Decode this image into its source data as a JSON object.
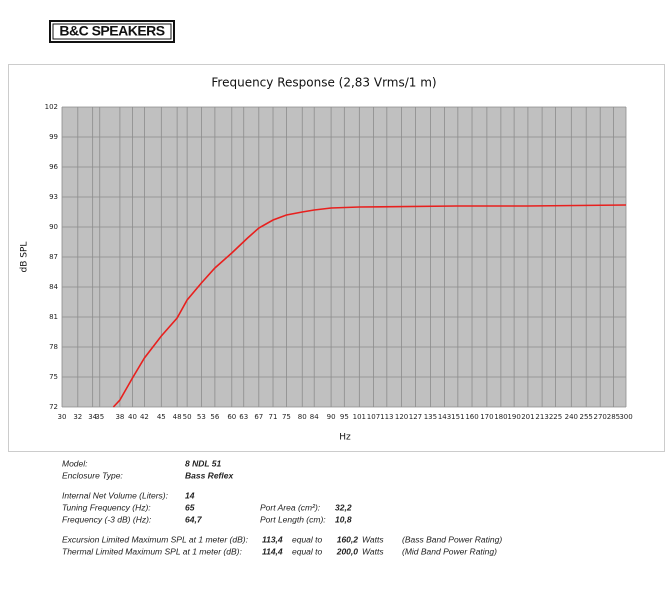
{
  "logo": "B&C SPEAKERS",
  "chart_data": {
    "type": "line",
    "title": "Frequency Response (2,83 Vrms/1 m)",
    "x_label": "Hz",
    "y_label": "dB SPL",
    "xscale": "log",
    "grid": true,
    "xlim": [
      30,
      300
    ],
    "ylim": [
      72,
      102
    ],
    "xticks": [
      30,
      32,
      34,
      35,
      38,
      40,
      42,
      45,
      48,
      50,
      53,
      56,
      60,
      63,
      67,
      71,
      75,
      80,
      84,
      90,
      95,
      101,
      107,
      113,
      120,
      127,
      135,
      143,
      151,
      160,
      170,
      180,
      190,
      201,
      213,
      225,
      240,
      255,
      270,
      285,
      300
    ],
    "yticks": [
      72,
      75,
      78,
      81,
      84,
      87,
      90,
      93,
      96,
      99,
      102
    ],
    "series": [
      {
        "color": "#e8201e",
        "x": [
          37,
          38,
          40,
          42,
          45,
          48,
          50,
          53,
          56,
          60,
          64,
          67,
          71,
          75,
          80,
          84,
          90,
          101,
          150,
          200,
          300
        ],
        "values": [
          72,
          72.7,
          74.9,
          76.9,
          79.1,
          80.9,
          82.7,
          84.4,
          85.9,
          87.4,
          88.9,
          89.9,
          90.7,
          91.2,
          91.5,
          91.7,
          91.9,
          92.0,
          92.1,
          92.1,
          92.2
        ]
      }
    ]
  },
  "specs": [
    [
      "Model:",
      "8 NDL 51"
    ],
    [
      "Enclosure Type:",
      "Bass Reflex"
    ],
    [
      "Internal Net Volume (Liters):",
      "14"
    ],
    [
      "Tuning Frequency (Hz):",
      "65",
      "Port Area (cm²):",
      "32,2"
    ],
    [
      "Frequency (-3 dB) (Hz):",
      "64,7",
      "Port Length (cm):",
      "10,8"
    ],
    [
      "Excursion Limited Maximum SPL at 1 meter (dB):",
      "113,4",
      "equal to",
      "160,2",
      "Watts",
      "(Bass Band Power Rating)"
    ],
    [
      "Thermal Limited Maximum SPL at 1 meter (dB):",
      "114,4",
      "equal to",
      "200,0",
      "Watts",
      "(Mid Band Power Rating)"
    ]
  ]
}
